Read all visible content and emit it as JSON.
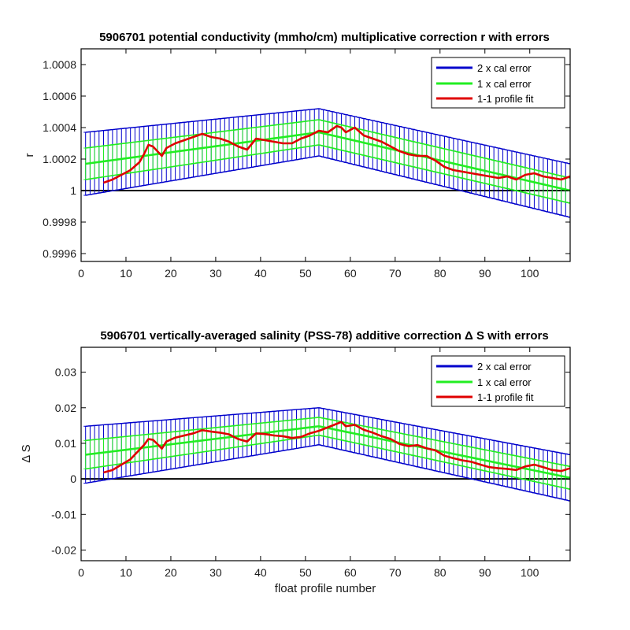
{
  "chart_data": [
    {
      "type": "line",
      "title": "5906701 potential conductivity (mmho/cm) multiplicative correction r with errors",
      "xlabel": "",
      "ylabel": "r",
      "xlim": [
        0,
        109
      ],
      "ylim": [
        0.99955,
        1.0009
      ],
      "xticks": [
        "0",
        "10",
        "20",
        "30",
        "40",
        "50",
        "60",
        "70",
        "80",
        "90",
        "100"
      ],
      "yticks": [
        "0.9996",
        "0.9998",
        "1",
        "1.0002",
        "1.0004",
        "1.0006",
        "1.0008"
      ],
      "reference_line": 1,
      "colors": {
        "two_x": "#0000cc",
        "one_x": "#22ee22",
        "fit": "#e00000",
        "ref": "#000000"
      },
      "band_knots": {
        "x": [
          1,
          53,
          109
        ],
        "fit": [
          1.00017,
          1.00037,
          1.0
        ],
        "one_x_halfwidth": [
          0.0001,
          8e-05,
          8e-05
        ],
        "two_x_halfwidth": [
          0.0002,
          0.00015,
          0.00017
        ]
      },
      "series": [
        {
          "name": "1-1 profile fit",
          "x": [
            5,
            7,
            9,
            11,
            13,
            14,
            15,
            16,
            17,
            18,
            19,
            21,
            23,
            25,
            27,
            29,
            31,
            33,
            35,
            37,
            39,
            41,
            43,
            45,
            47,
            49,
            51,
            53,
            55,
            57,
            58,
            59,
            61,
            63,
            65,
            67,
            69,
            71,
            73,
            75,
            77,
            79,
            81,
            83,
            85,
            87,
            89,
            91,
            93,
            95,
            97,
            99,
            101,
            103,
            105,
            107,
            109
          ],
          "values": [
            1.00005,
            1.00007,
            1.0001,
            1.00013,
            1.00018,
            1.00023,
            1.00029,
            1.00028,
            1.00025,
            1.00022,
            1.00027,
            1.0003,
            1.00032,
            1.00034,
            1.00036,
            1.00034,
            1.00033,
            1.00031,
            1.00028,
            1.00026,
            1.00033,
            1.00032,
            1.00031,
            1.0003,
            1.0003,
            1.00033,
            1.00035,
            1.00038,
            1.00037,
            1.00041,
            1.0004,
            1.00037,
            1.0004,
            1.00035,
            1.00033,
            1.00031,
            1.00028,
            1.00025,
            1.00023,
            1.00022,
            1.00022,
            1.00019,
            1.00015,
            1.00013,
            1.00012,
            1.00011,
            1.0001,
            1.00009,
            1.00008,
            1.00009,
            1.00007,
            1.0001,
            1.00011,
            1.00009,
            1.00008,
            1.00007,
            1.00009
          ]
        }
      ],
      "legend": {
        "position": "top-right",
        "entries": [
          "2 x cal error",
          "1 x cal error",
          "1-1 profile fit"
        ]
      }
    },
    {
      "type": "line",
      "title": "5906701 vertically-averaged salinity (PSS-78) additive correction Δ S with errors",
      "xlabel": "float profile number",
      "ylabel": "Δ S",
      "xlim": [
        0,
        109
      ],
      "ylim": [
        -0.023,
        0.037
      ],
      "xticks": [
        "0",
        "10",
        "20",
        "30",
        "40",
        "50",
        "60",
        "70",
        "80",
        "90",
        "100"
      ],
      "yticks": [
        "-0.02",
        "-0.01",
        "0",
        "0.01",
        "0.02",
        "0.03"
      ],
      "reference_line": 0,
      "colors": {
        "two_x": "#0000cc",
        "one_x": "#22ee22",
        "fit": "#e00000",
        "ref": "#000000"
      },
      "band_knots": {
        "x": [
          1,
          53,
          109
        ],
        "fit": [
          0.0068,
          0.0148,
          0.0003
        ],
        "one_x_halfwidth": [
          0.004,
          0.0025,
          0.0032
        ],
        "two_x_halfwidth": [
          0.008,
          0.0052,
          0.0065
        ]
      },
      "series": [
        {
          "name": "1-1 profile fit",
          "x": [
            5,
            7,
            9,
            11,
            13,
            14,
            15,
            16,
            17,
            18,
            19,
            21,
            23,
            25,
            27,
            29,
            31,
            33,
            35,
            37,
            39,
            41,
            43,
            45,
            47,
            49,
            51,
            53,
            55,
            57,
            58,
            59,
            61,
            63,
            65,
            67,
            69,
            71,
            73,
            75,
            77,
            79,
            81,
            83,
            85,
            87,
            89,
            91,
            93,
            95,
            97,
            99,
            101,
            103,
            105,
            107,
            109
          ],
          "values": [
            0.0018,
            0.0025,
            0.004,
            0.0055,
            0.0082,
            0.0095,
            0.0112,
            0.011,
            0.0098,
            0.0085,
            0.0105,
            0.0116,
            0.0122,
            0.0128,
            0.0137,
            0.0133,
            0.013,
            0.0125,
            0.0112,
            0.0105,
            0.0128,
            0.0126,
            0.0122,
            0.012,
            0.0115,
            0.0118,
            0.0128,
            0.0135,
            0.0145,
            0.0155,
            0.016,
            0.0148,
            0.0152,
            0.0138,
            0.013,
            0.012,
            0.0112,
            0.0098,
            0.0092,
            0.0095,
            0.0086,
            0.008,
            0.0065,
            0.0058,
            0.0052,
            0.0048,
            0.004,
            0.0033,
            0.003,
            0.0028,
            0.0025,
            0.0035,
            0.004,
            0.0033,
            0.0025,
            0.0022,
            0.003
          ]
        }
      ],
      "legend": {
        "position": "top-right",
        "entries": [
          "2 x cal error",
          "1 x cal error",
          "1-1 profile fit"
        ]
      }
    }
  ]
}
